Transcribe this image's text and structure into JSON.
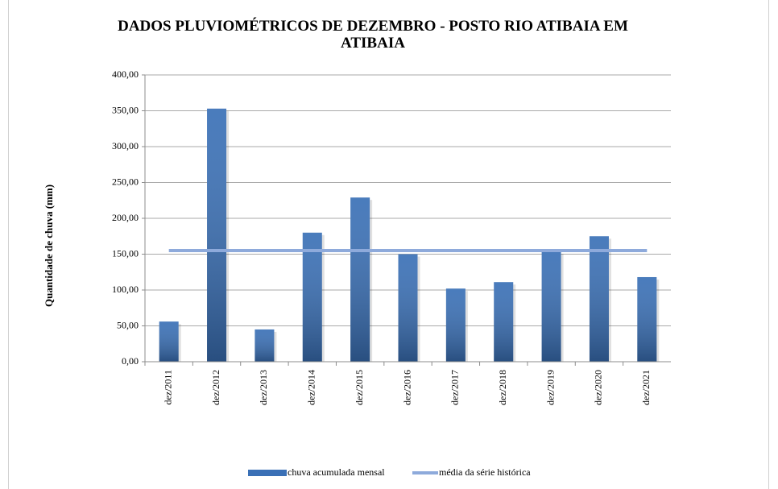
{
  "chart_data": {
    "type": "bar",
    "title": "DADOS PLUVIOMÉTRICOS DE DEZEMBRO - POSTO RIO ATIBAIA EM ATIBAIA",
    "y_label": "Quantidade de chuva (mm)",
    "categories": [
      "dez/2011",
      "dez/2012",
      "dez/2013",
      "dez/2014",
      "dez/2015",
      "dez/2016",
      "dez/2017",
      "dez/2018",
      "dez/2019",
      "dez/2020",
      "dez/2021"
    ],
    "series": [
      {
        "name": "chuva acumulada mensal",
        "color": "#3a70b6",
        "type": "bar",
        "values": [
          56,
          353,
          45,
          180,
          229,
          150,
          102,
          111,
          154,
          175,
          118
        ]
      },
      {
        "name": "média da série histórica",
        "color": "#8eaadb",
        "type": "line",
        "values": [
          155,
          155,
          155,
          155,
          155,
          155,
          155,
          155,
          155,
          155,
          155
        ]
      }
    ],
    "ylim": [
      0,
      400
    ],
    "yticks": [
      {
        "value": 0,
        "label": "0,00"
      },
      {
        "value": 50,
        "label": "50,00"
      },
      {
        "value": 100,
        "label": "100,00"
      },
      {
        "value": 150,
        "label": "150,00"
      },
      {
        "value": 200,
        "label": "200,00"
      },
      {
        "value": 250,
        "label": "250,00"
      },
      {
        "value": 300,
        "label": "300,00"
      },
      {
        "value": 350,
        "label": "350,00"
      },
      {
        "value": 400,
        "label": "400,00"
      }
    ],
    "grid": true,
    "legend": "bottom"
  }
}
